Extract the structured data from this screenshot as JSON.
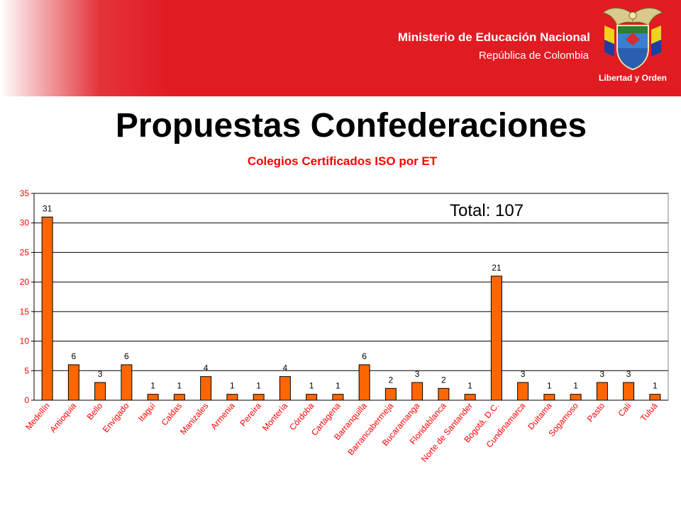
{
  "header": {
    "ministry": "Ministerio de Educación Nacional",
    "republic": "República de Colombia",
    "seal_motto": "Libertad y Orden",
    "accent_color": "#e11b22"
  },
  "slide": {
    "title": "Propuestas Confederaciones"
  },
  "chart_data": {
    "type": "bar",
    "title": "Colegios Certificados ISO por ET",
    "annotation": "Total: 107",
    "categories": [
      "Medellín",
      "Antioquia",
      "Bello",
      "Envigado",
      "Itaguí",
      "Caldas",
      "Manizales",
      "Armenia",
      "Pereira",
      "Montería",
      "Córdoba",
      "Cartagena",
      "Barranquilla",
      "Barrancabermeja",
      "Bucaramanga",
      "Floridablanca",
      "Norte de Santander",
      "Bogotá, D.C.",
      "Cundinamarca",
      "Duitama",
      "Sogamoso",
      "Pasto",
      "Cali",
      "Tuluá"
    ],
    "values": [
      31,
      6,
      3,
      6,
      1,
      1,
      4,
      1,
      1,
      4,
      1,
      1,
      6,
      2,
      3,
      2,
      1,
      21,
      3,
      1,
      1,
      3,
      3,
      1
    ],
    "ylim": [
      0,
      35
    ],
    "yticks": [
      0,
      5,
      10,
      15,
      20,
      25,
      30,
      35
    ],
    "grid": true,
    "legend": "none",
    "bar_color": "#ff6600",
    "label_color": "#ff0000"
  }
}
